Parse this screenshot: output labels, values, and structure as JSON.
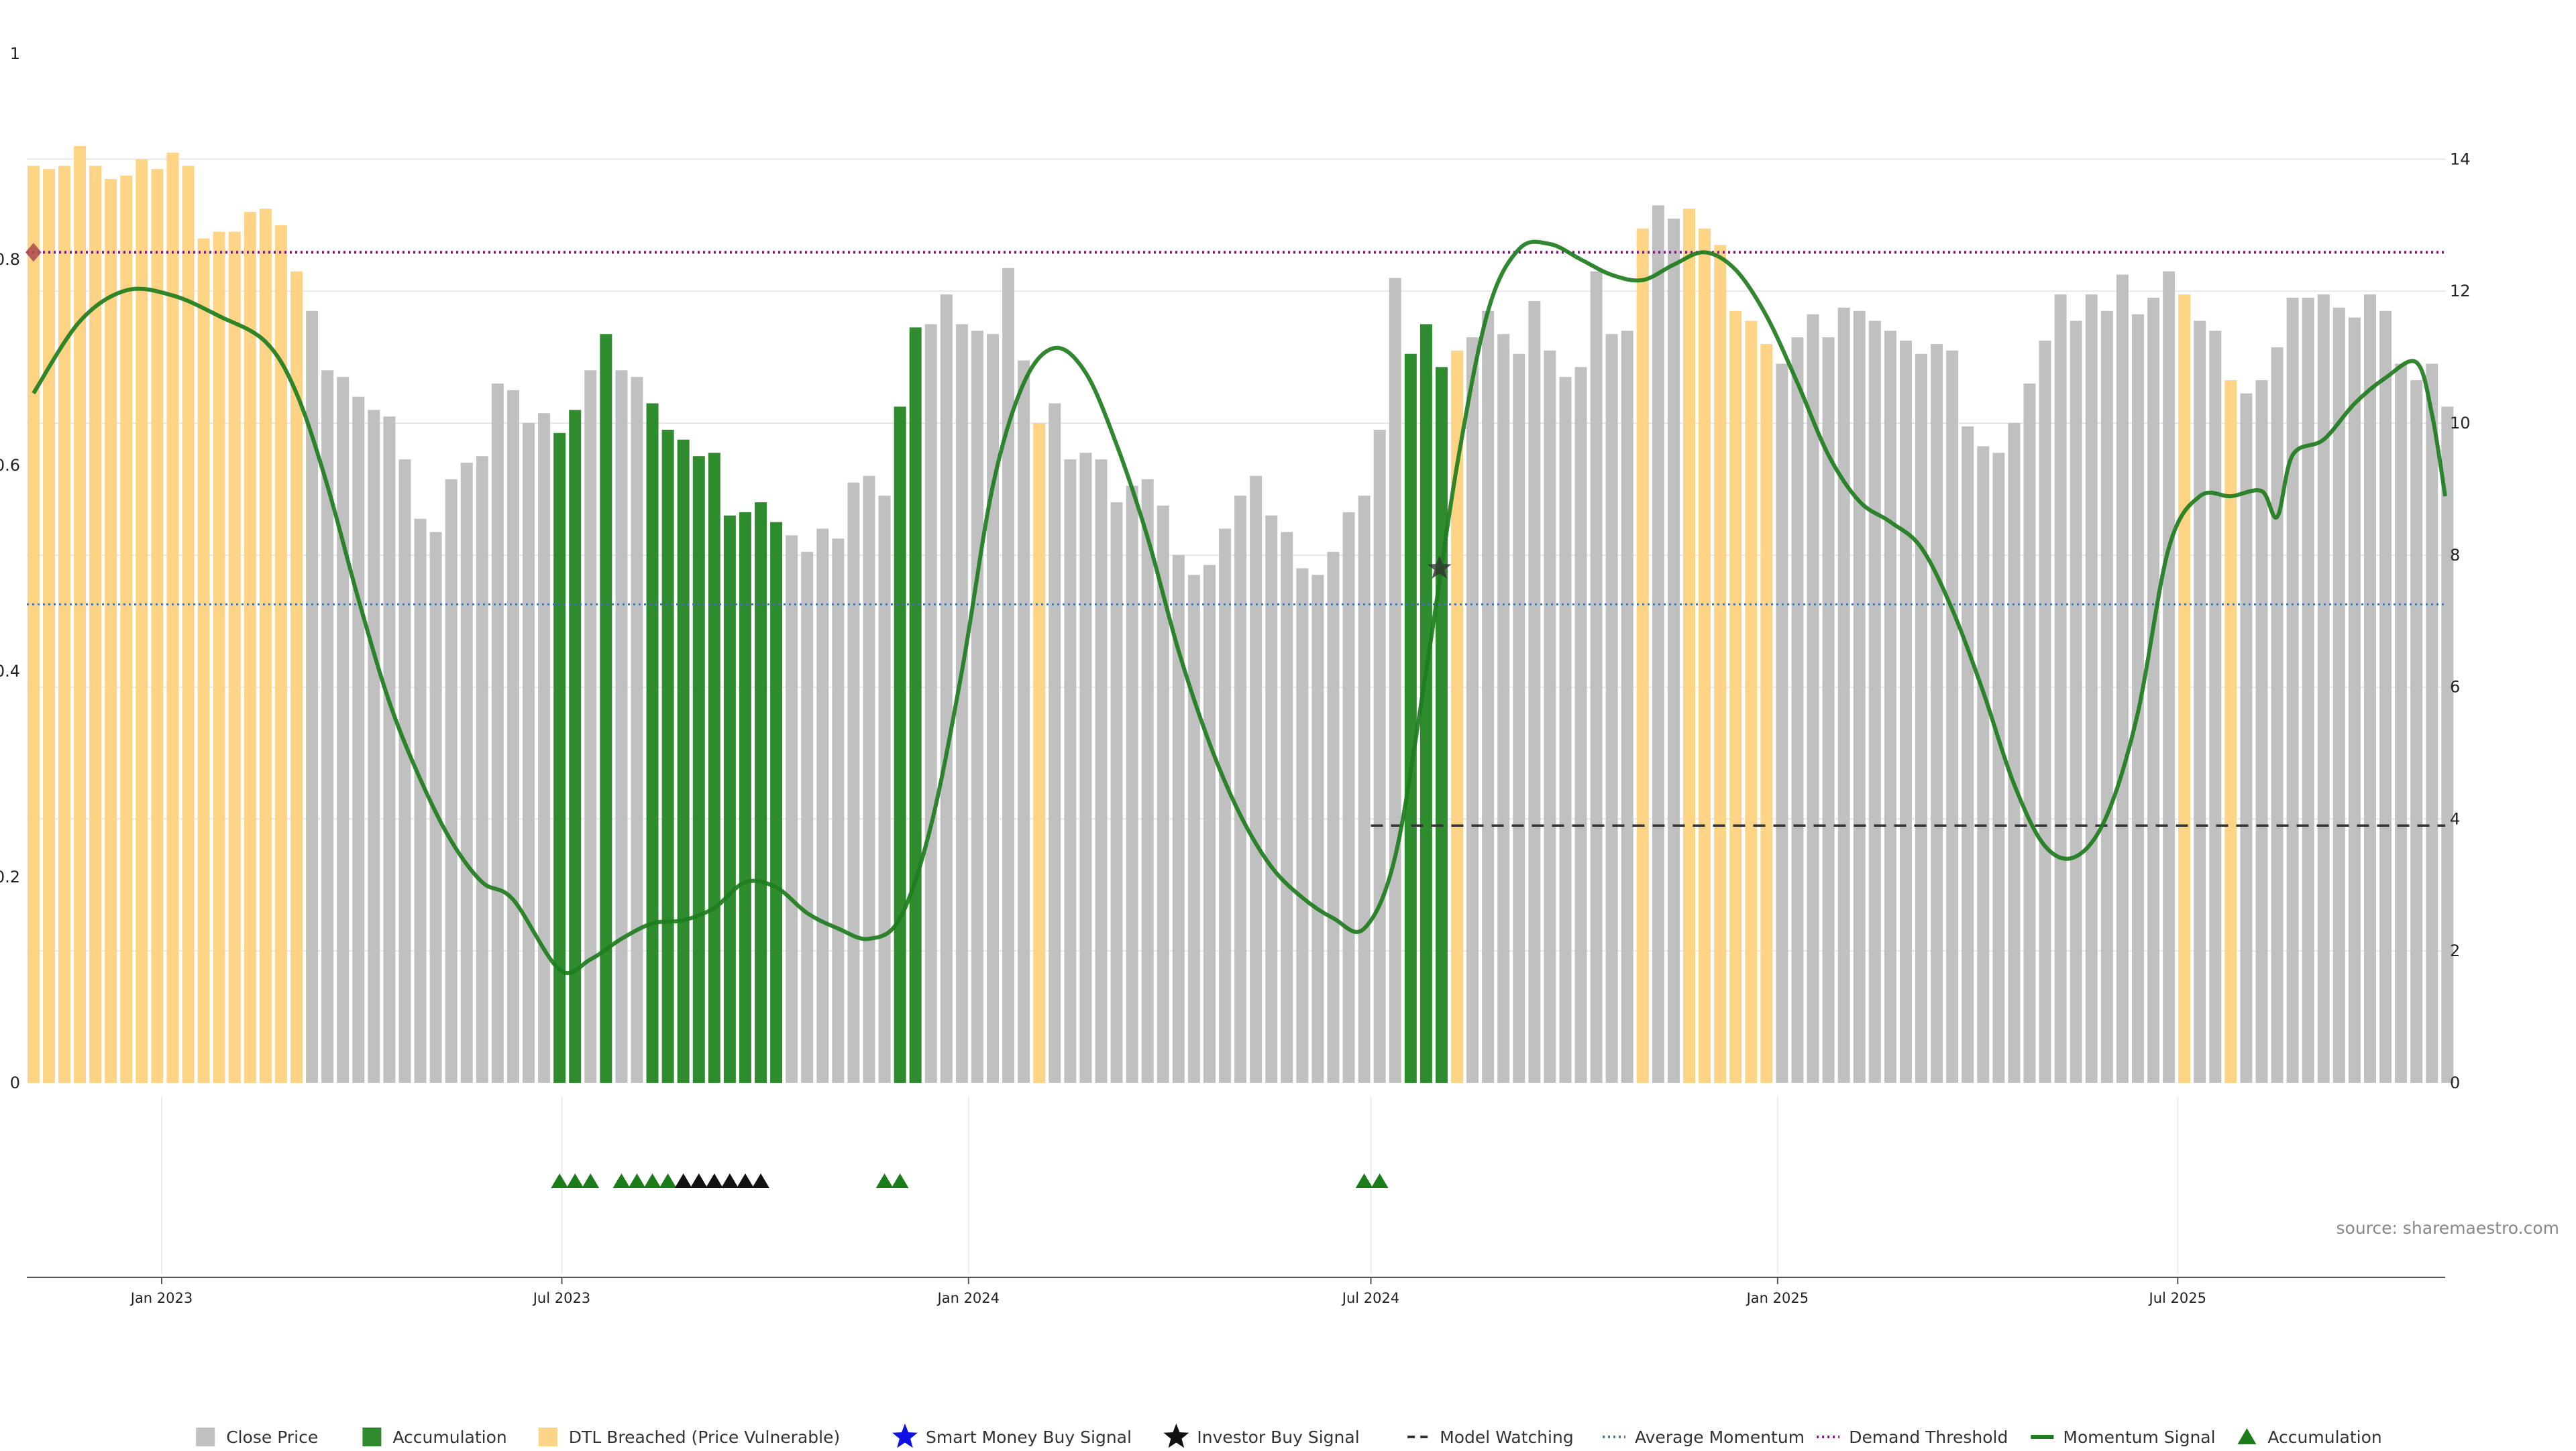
{
  "chart_data": {
    "type": "bar",
    "title": "",
    "xlabel": "",
    "ylabel": "",
    "source_note": "source: sharemaestro.com",
    "x_range": [
      "2022-11-01",
      "2025-10-30"
    ],
    "x_ticks": [
      {
        "date": "2023-01-01",
        "label": "Jan 2023"
      },
      {
        "date": "2023-07-01",
        "label": "Jul 2023"
      },
      {
        "date": "2024-01-01",
        "label": "Jan 2024"
      },
      {
        "date": "2024-07-01",
        "label": "Jul 2024"
      },
      {
        "date": "2025-01-01",
        "label": "Jan 2025"
      },
      {
        "date": "2025-07-01",
        "label": "Jul 2025"
      }
    ],
    "left_axis": {
      "ylim": [
        0,
        1
      ],
      "ticks": [
        0,
        0.2,
        0.4,
        0.6,
        0.8,
        1
      ],
      "tick_labels": [
        "0",
        "0.2",
        "0.4",
        "0.6",
        "0.8",
        "1"
      ]
    },
    "right_axis": {
      "ylim": [
        0,
        15.6
      ],
      "ticks": [
        0,
        2,
        4,
        6,
        8,
        10,
        12,
        14
      ],
      "tick_labels": [
        "0",
        "2",
        "4",
        "6",
        "8",
        "10",
        "12",
        "14"
      ]
    },
    "grid": true,
    "legend_position": "bottom-center",
    "colors": {
      "close_price": "#c0c0c0",
      "accumulation": "#2e8b2e",
      "dtl_breached": "#fdd486",
      "smart_money": "#1010e0",
      "investor_buy": "#111111",
      "model_watching": "#333333",
      "average_momentum": "#4a78a8",
      "demand_threshold": "#7a1a7a",
      "momentum_signal": "#1e7d1e",
      "accumulation_marker": "#1a7d1a",
      "diamond_marker": "#b05050"
    },
    "legend": [
      {
        "label": "Close Price",
        "symbol": "square",
        "color_key": "close_price"
      },
      {
        "label": "Accumulation",
        "symbol": "square",
        "color_key": "accumulation"
      },
      {
        "label": "DTL Breached (Price Vulnerable)",
        "symbol": "square",
        "color_key": "dtl_breached"
      },
      {
        "label": "Smart Money Buy Signal",
        "symbol": "star",
        "color_key": "smart_money"
      },
      {
        "label": "Investor Buy Signal",
        "symbol": "star",
        "color_key": "investor_buy"
      },
      {
        "label": "Model Watching",
        "symbol": "dash",
        "color_key": "model_watching"
      },
      {
        "label": "Average Momentum",
        "symbol": "dot",
        "color_key": "average_momentum"
      },
      {
        "label": "Demand Threshold",
        "symbol": "dot",
        "color_key": "demand_threshold"
      },
      {
        "label": "Momentum Signal",
        "symbol": "line",
        "color_key": "momentum_signal"
      },
      {
        "label": "Accumulation",
        "symbol": "triangle",
        "color_key": "accumulation_marker"
      }
    ],
    "series": [
      {
        "name": "Close Price",
        "axis": "right",
        "start_date": "2022-11-04",
        "step_days": 7,
        "values": [
          13.9,
          13.85,
          13.9,
          14.2,
          13.9,
          13.7,
          13.75,
          14.0,
          13.85,
          14.1,
          13.9,
          12.8,
          12.9,
          12.9,
          13.2,
          13.25,
          13.0,
          12.3,
          11.7,
          10.8,
          10.7,
          10.4,
          10.2,
          10.1,
          9.45,
          8.55,
          8.35,
          9.15,
          9.4,
          9.5,
          10.6,
          10.5,
          10.0,
          10.15,
          9.85,
          10.2,
          10.8,
          11.35,
          10.8,
          10.7,
          10.3,
          9.9,
          9.75,
          9.5,
          9.55,
          8.6,
          8.65,
          8.8,
          8.5,
          8.3,
          8.05,
          8.4,
          8.25,
          9.1,
          9.2,
          8.9,
          10.25,
          11.45,
          11.5,
          11.95,
          11.5,
          11.4,
          11.35,
          12.35,
          10.95,
          10.0,
          10.3,
          9.45,
          9.55,
          9.45,
          8.8,
          9.05,
          9.15,
          8.75,
          8.0,
          7.7,
          7.85,
          8.4,
          8.9,
          9.2,
          8.6,
          8.35,
          7.8,
          7.7,
          8.05,
          8.65,
          8.9,
          9.9,
          12.2,
          11.05,
          11.5,
          10.85,
          11.1,
          11.3,
          11.7,
          11.35,
          11.05,
          11.85,
          11.1,
          10.7,
          10.85,
          12.3,
          11.35,
          11.4,
          12.95,
          13.3,
          13.1,
          13.25,
          12.95,
          12.7,
          11.7,
          11.55,
          11.2,
          10.9,
          11.3,
          11.65,
          11.3,
          11.75,
          11.7,
          11.55,
          11.4,
          11.25,
          11.05,
          11.2,
          11.1,
          9.95,
          9.65,
          9.55,
          10.0,
          10.6,
          11.25,
          11.95,
          11.55,
          11.95,
          11.7,
          12.25,
          11.65,
          11.9,
          12.3,
          11.95,
          11.55,
          11.4,
          10.65,
          10.45,
          10.65,
          11.15,
          11.9,
          11.9,
          11.95,
          11.75,
          11.6,
          11.95,
          11.7,
          10.9,
          10.65,
          10.9,
          10.25
        ],
        "flags": "DDDDDDDDDDDDDDDDDDCCCCCCCCCCCCCCCCAACACCAAAAAAAAACCCCCCCAACCCCCCCDCCCCCCCCCCCCCCCCCCCCCCCAAADCCCCCCCCCCCDCCDDDDDDCCCCCCCCCCCCCCCCCCCCCCCCCCDCCDCCCCCCCCCCCCCCCCCC",
        "flag_legend": {
          "C": "Close Price",
          "A": "Accumulation",
          "D": "DTL Breached (Price Vulnerable)"
        }
      },
      {
        "name": "Momentum Signal",
        "axis": "left",
        "points": [
          [
            "2022-11-04",
            0.67
          ],
          [
            "2022-11-25",
            0.74
          ],
          [
            "2022-12-16",
            0.77
          ],
          [
            "2023-01-06",
            0.765
          ],
          [
            "2023-01-27",
            0.745
          ],
          [
            "2023-02-17",
            0.72
          ],
          [
            "2023-03-03",
            0.67
          ],
          [
            "2023-03-17",
            0.58
          ],
          [
            "2023-03-31",
            0.47
          ],
          [
            "2023-04-14",
            0.37
          ],
          [
            "2023-04-28",
            0.295
          ],
          [
            "2023-05-12",
            0.235
          ],
          [
            "2023-05-26",
            0.195
          ],
          [
            "2023-06-09",
            0.178
          ],
          [
            "2023-06-30",
            0.11
          ],
          [
            "2023-07-14",
            0.12
          ],
          [
            "2023-07-28",
            0.14
          ],
          [
            "2023-08-11",
            0.155
          ],
          [
            "2023-08-25",
            0.158
          ],
          [
            "2023-09-08",
            0.17
          ],
          [
            "2023-09-22",
            0.195
          ],
          [
            "2023-10-06",
            0.19
          ],
          [
            "2023-10-20",
            0.165
          ],
          [
            "2023-11-03",
            0.15
          ],
          [
            "2023-11-17",
            0.14
          ],
          [
            "2023-12-01",
            0.16
          ],
          [
            "2023-12-15",
            0.25
          ],
          [
            "2023-12-29",
            0.4
          ],
          [
            "2024-01-12",
            0.58
          ],
          [
            "2024-01-26",
            0.68
          ],
          [
            "2024-02-09",
            0.714
          ],
          [
            "2024-02-23",
            0.69
          ],
          [
            "2024-03-08",
            0.62
          ],
          [
            "2024-03-22",
            0.53
          ],
          [
            "2024-04-05",
            0.42
          ],
          [
            "2024-04-19",
            0.33
          ],
          [
            "2024-05-03",
            0.26
          ],
          [
            "2024-05-17",
            0.21
          ],
          [
            "2024-05-31",
            0.18
          ],
          [
            "2024-06-14",
            0.16
          ],
          [
            "2024-06-28",
            0.15
          ],
          [
            "2024-07-12",
            0.22
          ],
          [
            "2024-07-26",
            0.4
          ],
          [
            "2024-08-09",
            0.6
          ],
          [
            "2024-08-23",
            0.75
          ],
          [
            "2024-09-06",
            0.81
          ],
          [
            "2024-09-20",
            0.815
          ],
          [
            "2024-10-04",
            0.8
          ],
          [
            "2024-10-18",
            0.785
          ],
          [
            "2024-11-01",
            0.78
          ],
          [
            "2024-11-15",
            0.795
          ],
          [
            "2024-11-29",
            0.807
          ],
          [
            "2024-12-13",
            0.79
          ],
          [
            "2024-12-27",
            0.745
          ],
          [
            "2025-01-10",
            0.68
          ],
          [
            "2025-01-24",
            0.61
          ],
          [
            "2025-02-07",
            0.565
          ],
          [
            "2025-02-21",
            0.545
          ],
          [
            "2025-03-07",
            0.52
          ],
          [
            "2025-03-21",
            0.46
          ],
          [
            "2025-04-04",
            0.38
          ],
          [
            "2025-04-18",
            0.29
          ],
          [
            "2025-05-02",
            0.23
          ],
          [
            "2025-05-16",
            0.22
          ],
          [
            "2025-05-30",
            0.26
          ],
          [
            "2025-06-13",
            0.36
          ],
          [
            "2025-06-27",
            0.52
          ],
          [
            "2025-07-11",
            0.57
          ],
          [
            "2025-07-25",
            0.57
          ],
          [
            "2025-08-08",
            0.575
          ],
          [
            "2025-08-15",
            0.55
          ],
          [
            "2025-08-22",
            0.61
          ],
          [
            "2025-09-05",
            0.625
          ],
          [
            "2025-09-19",
            0.66
          ],
          [
            "2025-10-03",
            0.685
          ],
          [
            "2025-10-17",
            0.7
          ],
          [
            "2025-10-24",
            0.65
          ],
          [
            "2025-10-30",
            0.57
          ]
        ]
      }
    ],
    "reference_lines": [
      {
        "name": "Demand Threshold",
        "axis": "left",
        "value": 0.807,
        "style": "dotted"
      },
      {
        "name": "Average Momentum",
        "axis": "left",
        "value": 0.465,
        "style": "dotted"
      },
      {
        "name": "Model Watching",
        "axis": "left",
        "value": 0.25,
        "start": "2024-07-01",
        "end": "2025-10-30",
        "style": "dashed"
      }
    ],
    "markers": {
      "investor_buy_star": {
        "date": "2024-08-01",
        "value": 0.5
      },
      "diamond": {
        "date": "2022-11-04",
        "value": 0.807
      },
      "accumulation_triangles": [
        {
          "date": "2023-06-30",
          "color": "green"
        },
        {
          "date": "2023-07-07",
          "color": "green"
        },
        {
          "date": "2023-07-14",
          "color": "green"
        },
        {
          "date": "2023-07-28",
          "color": "green"
        },
        {
          "date": "2023-08-04",
          "color": "green"
        },
        {
          "date": "2023-08-11",
          "color": "green"
        },
        {
          "date": "2023-08-18",
          "color": "green"
        },
        {
          "date": "2023-08-25",
          "color": "black"
        },
        {
          "date": "2023-09-01",
          "color": "black"
        },
        {
          "date": "2023-09-08",
          "color": "black"
        },
        {
          "date": "2023-09-15",
          "color": "black"
        },
        {
          "date": "2023-09-22",
          "color": "black"
        },
        {
          "date": "2023-09-29",
          "color": "black"
        },
        {
          "date": "2023-11-24",
          "color": "green"
        },
        {
          "date": "2023-12-01",
          "color": "green"
        },
        {
          "date": "2024-06-28",
          "color": "green"
        },
        {
          "date": "2024-07-05",
          "color": "green"
        }
      ]
    }
  }
}
